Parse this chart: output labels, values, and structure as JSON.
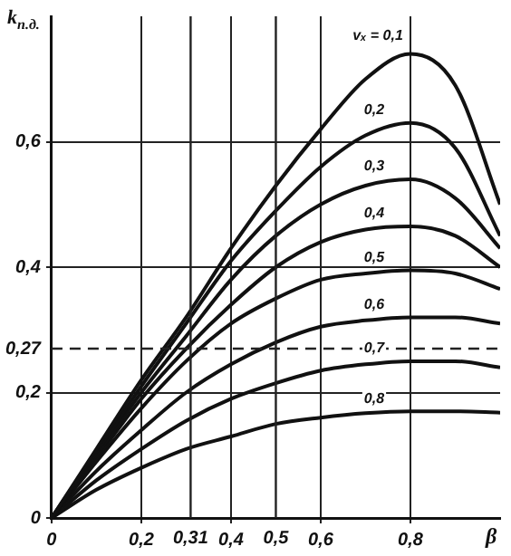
{
  "chart_data": {
    "type": "line",
    "ylabel": "k$_{п.д.}$",
    "xlabel": "β",
    "x": [
      0,
      0.1,
      0.2,
      0.3,
      0.4,
      0.5,
      0.6,
      0.7,
      0.8,
      0.9,
      1.0
    ],
    "series": [
      {
        "name": "vₓ = 0,1",
        "color": "#111111",
        "values": [
          0,
          0.11,
          0.22,
          0.32,
          0.43,
          0.53,
          0.62,
          0.7,
          0.74,
          0.69,
          0.5
        ]
      },
      {
        "name": "0,2",
        "color": "#111111",
        "values": [
          0,
          0.105,
          0.21,
          0.31,
          0.41,
          0.49,
          0.56,
          0.61,
          0.63,
          0.59,
          0.45
        ]
      },
      {
        "name": "0,3",
        "color": "#111111",
        "values": [
          0,
          0.1,
          0.2,
          0.29,
          0.38,
          0.45,
          0.5,
          0.53,
          0.54,
          0.51,
          0.43
        ]
      },
      {
        "name": "0,4",
        "color": "#111111",
        "values": [
          0,
          0.095,
          0.19,
          0.27,
          0.34,
          0.4,
          0.44,
          0.46,
          0.465,
          0.45,
          0.4
        ]
      },
      {
        "name": "0,5",
        "color": "#111111",
        "values": [
          0,
          0.09,
          0.175,
          0.25,
          0.31,
          0.35,
          0.38,
          0.39,
          0.395,
          0.39,
          0.365
        ]
      },
      {
        "name": "0,6",
        "color": "#111111",
        "values": [
          0,
          0.075,
          0.14,
          0.2,
          0.245,
          0.28,
          0.305,
          0.315,
          0.32,
          0.32,
          0.31
        ]
      },
      {
        "name": "0,7",
        "color": "#111111",
        "values": [
          0,
          0.06,
          0.11,
          0.155,
          0.19,
          0.215,
          0.235,
          0.245,
          0.25,
          0.25,
          0.24
        ]
      },
      {
        "name": "0,8",
        "color": "#111111",
        "values": [
          0,
          0.045,
          0.08,
          0.11,
          0.13,
          0.15,
          0.16,
          0.167,
          0.17,
          0.17,
          0.168
        ]
      }
    ],
    "xlim": [
      0,
      1
    ],
    "ylim": [
      0,
      0.8
    ],
    "xticks": [
      0,
      {
        "value": 0.2,
        "label": "0,2"
      },
      {
        "value": 0.4,
        "label": "0,4"
      },
      {
        "value": 0.6,
        "label": "0,6"
      },
      {
        "value": 0.8,
        "label": "0,8"
      }
    ],
    "yticks": [
      0,
      {
        "value": 0.2,
        "label": "0,2"
      },
      {
        "value": 0.27,
        "label": "0,27"
      },
      {
        "value": 0.4,
        "label": "0,4"
      },
      {
        "value": 0.6,
        "label": "0,6"
      }
    ],
    "ref_lines": [
      {
        "axis": "x",
        "value": 0.31,
        "label": "0,31"
      },
      {
        "axis": "x",
        "value": 0.5,
        "label": "0,5"
      },
      {
        "axis": "y",
        "value": 0.27,
        "line_style": "dashed"
      }
    ],
    "grid": true,
    "legend": false,
    "marker": "none",
    "line_style": "solid"
  }
}
